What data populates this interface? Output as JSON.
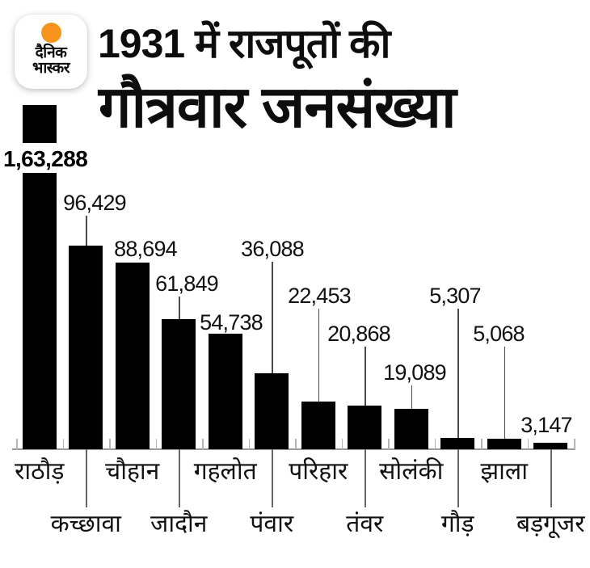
{
  "brand": {
    "line1": "दैनिक",
    "line2": "भास्कर",
    "dot_color": "#F7941E"
  },
  "title": {
    "line1": "1931 में राजपूतों की",
    "line2": "गौत्रवार जनसंख्या"
  },
  "chart_data": {
    "type": "bar",
    "title": "1931 में राजपूतों की गौत्रवार जनसंख्या",
    "categories": [
      "राठौड़",
      "कच्छावा",
      "चौहान",
      "जादौन",
      "गहलोत",
      "पंवार",
      "परिहार",
      "तंवर",
      "सोलंकी",
      "गौड़",
      "झाला",
      "बड़गूजर"
    ],
    "values": [
      163288,
      96429,
      88694,
      61849,
      54738,
      36088,
      22453,
      20868,
      19089,
      5307,
      5068,
      3147
    ],
    "value_labels": [
      "1,63,288",
      "96,429",
      "88,694",
      "61,849",
      "54,738",
      "36,088",
      "22,453",
      "20,868",
      "19,089",
      "5,307",
      "5,068",
      "3,147"
    ],
    "xlabel": "",
    "ylabel": "",
    "ylim": [
      0,
      163288
    ],
    "grid": false,
    "legend": false,
    "bar_color": "#000000",
    "background": "#FFFFFF"
  }
}
